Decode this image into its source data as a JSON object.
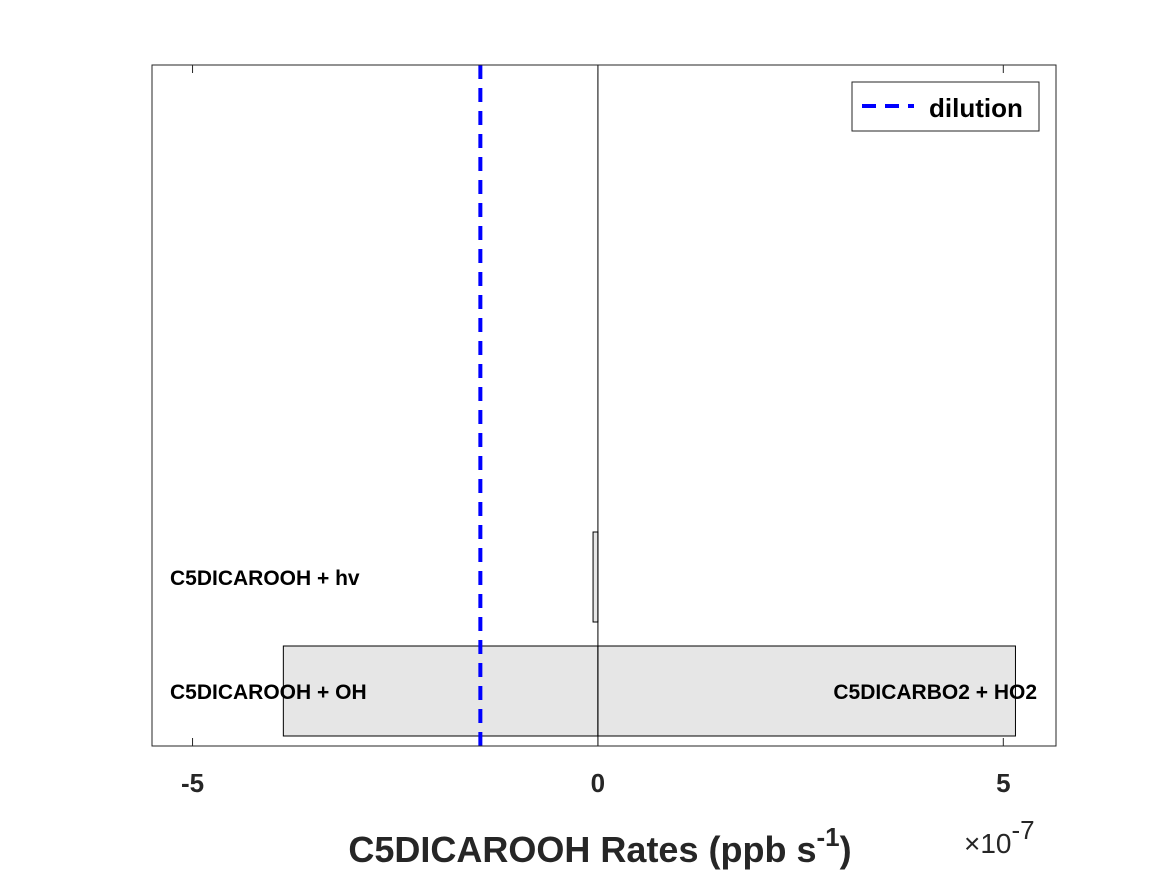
{
  "chart_data": {
    "type": "bar",
    "orientation": "horizontal",
    "xlabel": {
      "main": "C5DICAROOH Rates (ppb s",
      "sup": "-1",
      "tail": ")"
    },
    "x_exponent": {
      "prefix": "×10",
      "sup": "-7"
    },
    "xlim": [
      -5.5e-07,
      5.65e-07
    ],
    "xticks": [
      {
        "value": -5e-07,
        "label": "-5"
      },
      {
        "value": 0,
        "label": "0"
      },
      {
        "value": 5e-07,
        "label": "5"
      }
    ],
    "categories": [
      "C5DICAROOH + OH / C5DICARBO2 + HO2",
      "C5DICAROOH + hv"
    ],
    "bars": [
      {
        "category": 1,
        "segments": [
          {
            "from": -3.88e-07,
            "to": 0
          },
          {
            "from": 0,
            "to": 5.15e-07
          }
        ],
        "left_label": "C5DICAROOH + OH",
        "right_label": "C5DICARBO2 + HO2"
      },
      {
        "category": 2,
        "segments": [
          {
            "from": -6e-09,
            "to": 0
          }
        ],
        "left_label": "C5DICAROOH + hv",
        "right_label": ""
      }
    ],
    "reference_lines": [
      {
        "name": "dilution",
        "x": -1.45e-07,
        "style": "dashed",
        "color": "#0000ff"
      }
    ],
    "legend": {
      "placement": "top-right",
      "entries": [
        "dilution"
      ]
    },
    "grid": false,
    "bar_fill": "#e6e6e6",
    "bar_edge": "#000000"
  }
}
